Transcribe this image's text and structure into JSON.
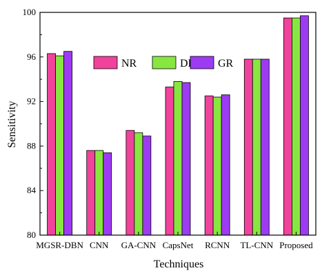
{
  "chart_data": {
    "type": "bar",
    "title": "",
    "xlabel": "Techniques",
    "ylabel": "Sensitivity",
    "categories": [
      "MGSR-DBN",
      "CNN",
      "GA-CNN",
      "CapsNet",
      "RCNN",
      "TL-CNN",
      "Proposed"
    ],
    "series": [
      {
        "name": "NR",
        "color": "#F0439C",
        "values": [
          96.3,
          87.6,
          89.4,
          93.3,
          92.5,
          95.8,
          99.5
        ]
      },
      {
        "name": "DR",
        "color": "#88E641",
        "values": [
          96.1,
          87.6,
          89.2,
          93.8,
          92.4,
          95.8,
          99.5
        ]
      },
      {
        "name": "GR",
        "color": "#9D3BF2",
        "values": [
          96.5,
          87.4,
          88.9,
          93.7,
          92.6,
          95.8,
          99.7
        ]
      }
    ],
    "ylim": [
      80,
      100
    ],
    "yticks": [
      "80",
      "84",
      "88",
      "92",
      "96",
      "100"
    ],
    "legend_position": "top-center",
    "grid": false
  }
}
